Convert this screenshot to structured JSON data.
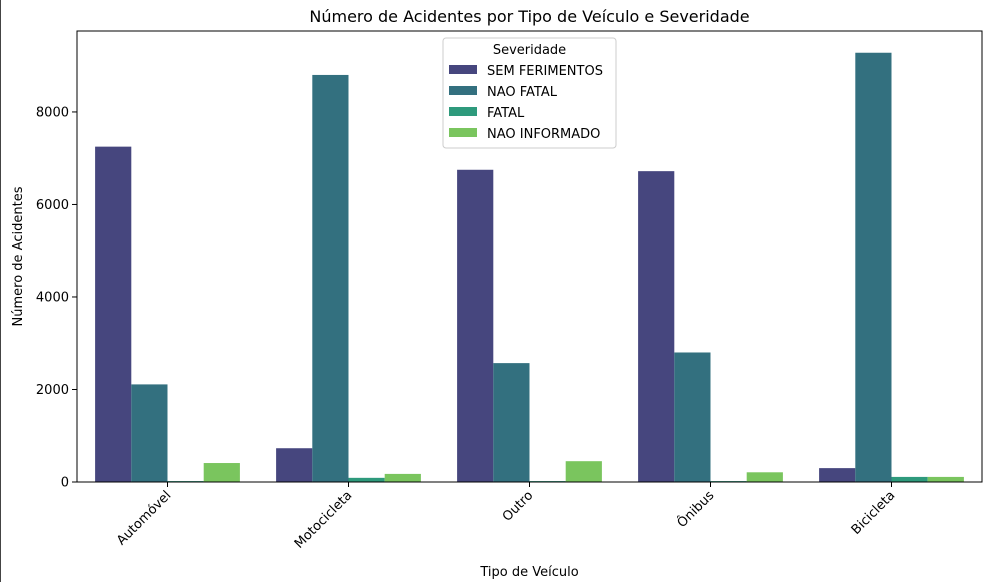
{
  "chart_data": {
    "type": "bar",
    "title": "Número de Acidentes por Tipo de Veículo e Severidade",
    "xlabel": "Tipo de Veículo",
    "ylabel": "Número de Acidentes",
    "categories": [
      "Automóvel",
      "Motocicleta",
      "Outro",
      "Ônibus",
      "Bicicleta"
    ],
    "ylim": [
      0,
      9750
    ],
    "yticks": [
      0,
      2000,
      4000,
      6000,
      8000
    ],
    "grid": false,
    "legend": {
      "title": "Severidade",
      "placement": "top-center"
    },
    "series": [
      {
        "name": "SEM FERIMENTOS",
        "color": "#46467e",
        "values": [
          7250,
          730,
          6750,
          6720,
          300
        ]
      },
      {
        "name": "NAO FATAL",
        "color": "#33707f",
        "values": [
          2110,
          8800,
          2570,
          2800,
          9280
        ]
      },
      {
        "name": "FATAL",
        "color": "#2e9a7c",
        "values": [
          20,
          90,
          20,
          20,
          110
        ]
      },
      {
        "name": "NAO INFORMADO",
        "color": "#7ac55e",
        "values": [
          410,
          175,
          450,
          210,
          110
        ]
      }
    ]
  }
}
